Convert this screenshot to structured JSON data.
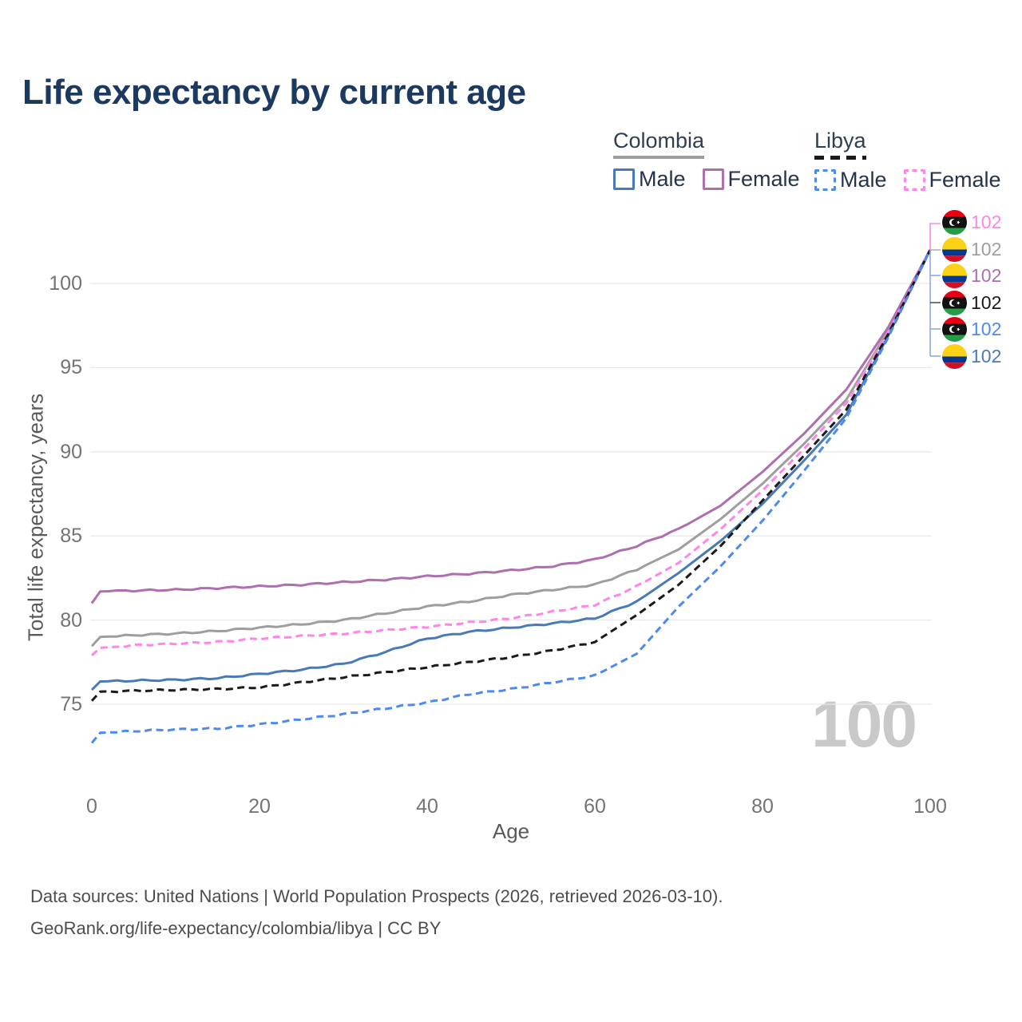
{
  "title": "Life expectancy by current age",
  "legend": {
    "groups": [
      {
        "label": "Colombia",
        "line_style": "solid",
        "line_color": "#9e9e9e",
        "items": [
          {
            "label": "Male",
            "color": "#4a7ab5",
            "dashed": false
          },
          {
            "label": "Female",
            "color": "#ae6fb0",
            "dashed": false
          }
        ]
      },
      {
        "label": "Libya",
        "line_style": "dashed",
        "line_color": "#1a1a1a",
        "items": [
          {
            "label": "Male",
            "color": "#4d8af0",
            "dashed": true
          },
          {
            "label": "Female",
            "color": "#ff85e6",
            "dashed": true
          }
        ]
      }
    ]
  },
  "watermark": "100",
  "end_labels": [
    {
      "flag": "libya",
      "series": "Libya Female",
      "value": "102",
      "color": "#ff85e6"
    },
    {
      "flag": "colombia",
      "series": "Colombia (both sexes)",
      "value": "102",
      "color": "#9e9e9e"
    },
    {
      "flag": "colombia",
      "series": "Colombia Female",
      "value": "102",
      "color": "#ae6fb0"
    },
    {
      "flag": "libya",
      "series": "Libya (both sexes)",
      "value": "102",
      "color": "#1a1a1a"
    },
    {
      "flag": "libya",
      "series": "Libya Male",
      "value": "102",
      "color": "#4d8af0"
    },
    {
      "flag": "colombia",
      "series": "Colombia Male",
      "value": "102",
      "color": "#4a7ab5"
    }
  ],
  "footer": {
    "line1": "Data sources: United Nations | World Population Prospects (2026, retrieved 2026-03-10).",
    "line2": "GeoRank.org/life-expectancy/colombia/libya | CC BY"
  },
  "chart_data": {
    "type": "line",
    "title": "Life expectancy by current age",
    "xlabel": "Age",
    "ylabel": "Total life expectancy, years",
    "xlim": [
      0,
      100
    ],
    "ylim": [
      72,
      103
    ],
    "x_ticks": [
      0,
      20,
      40,
      60,
      80,
      100
    ],
    "y_ticks": [
      75,
      80,
      85,
      90,
      95,
      100
    ],
    "grid": "horizontal",
    "legend_position": "top-right",
    "x": [
      0,
      1,
      5,
      10,
      15,
      20,
      25,
      30,
      35,
      40,
      45,
      50,
      55,
      60,
      65,
      70,
      75,
      80,
      85,
      90,
      95,
      100
    ],
    "series": [
      {
        "name": "Colombia (both sexes)",
        "country": "Colombia",
        "sex": "both",
        "color": "#9e9e9e",
        "dashed": false,
        "values": [
          78.45,
          79.0,
          79.1,
          79.2,
          79.35,
          79.55,
          79.75,
          80.0,
          80.4,
          80.8,
          81.1,
          81.5,
          81.8,
          82.1,
          83.0,
          84.2,
          86.0,
          88.1,
          90.5,
          93.1,
          97.2,
          102
        ]
      },
      {
        "name": "Colombia Female",
        "country": "Colombia",
        "sex": "female",
        "color": "#ae6fb0",
        "dashed": false,
        "values": [
          81.0,
          81.7,
          81.75,
          81.8,
          81.9,
          82.0,
          82.1,
          82.25,
          82.4,
          82.6,
          82.75,
          82.95,
          83.2,
          83.6,
          84.4,
          85.4,
          86.8,
          88.8,
          91.1,
          93.7,
          97.4,
          102
        ]
      },
      {
        "name": "Colombia Male",
        "country": "Colombia",
        "sex": "male",
        "color": "#4a7ab5",
        "dashed": false,
        "values": [
          75.85,
          76.35,
          76.4,
          76.45,
          76.55,
          76.8,
          77.05,
          77.4,
          78.1,
          78.9,
          79.3,
          79.55,
          79.8,
          80.1,
          81.1,
          82.8,
          84.7,
          86.9,
          89.5,
          92.2,
          96.9,
          102
        ]
      },
      {
        "name": "Libya Female",
        "country": "Libya",
        "sex": "female",
        "color": "#ff85e6",
        "dashed": true,
        "values": [
          77.9,
          78.35,
          78.5,
          78.6,
          78.7,
          78.9,
          79.05,
          79.2,
          79.4,
          79.6,
          79.85,
          80.1,
          80.5,
          80.9,
          82.0,
          83.4,
          85.4,
          87.7,
          90.2,
          92.9,
          97.1,
          102
        ]
      },
      {
        "name": "Libya (both sexes)",
        "country": "Libya",
        "sex": "both",
        "color": "#1a1a1a",
        "dashed": true,
        "values": [
          75.2,
          75.75,
          75.8,
          75.85,
          75.9,
          76.0,
          76.3,
          76.6,
          76.9,
          77.2,
          77.5,
          77.8,
          78.2,
          78.7,
          80.3,
          82.1,
          84.4,
          87.1,
          89.8,
          92.5,
          97.0,
          102
        ]
      },
      {
        "name": "Libya Male",
        "country": "Libya",
        "sex": "male",
        "color": "#4d8af0",
        "dashed": true,
        "values": [
          72.7,
          73.3,
          73.4,
          73.5,
          73.55,
          73.8,
          74.1,
          74.4,
          74.75,
          75.1,
          75.6,
          75.9,
          76.3,
          76.7,
          78.0,
          80.8,
          83.2,
          85.9,
          88.9,
          92.0,
          96.8,
          102
        ]
      }
    ]
  }
}
